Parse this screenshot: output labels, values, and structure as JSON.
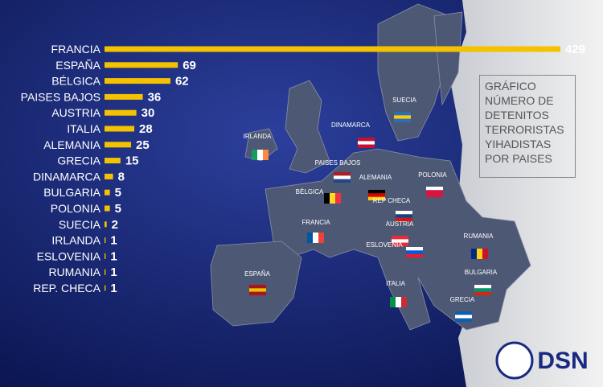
{
  "chart_data": {
    "type": "bar",
    "title": "GRÁFICO NÚMERO DE DETENITOS TERRORISTAS YIHADISTAS POR PAISES",
    "categories": [
      "FRANCIA",
      "ESPAÑA",
      "BÉLGICA",
      "PAISES BAJOS",
      "AUSTRIA",
      "ITALIA",
      "ALEMANIA",
      "GRECIA",
      "DINAMARCA",
      "BULGARIA",
      "POLONIA",
      "SUECIA",
      "IRLANDA",
      "ESLOVENIA",
      "RUMANIA",
      "REP. CHECA"
    ],
    "values": [
      429,
      69,
      62,
      36,
      30,
      28,
      25,
      15,
      8,
      5,
      5,
      2,
      1,
      1,
      1,
      1
    ],
    "color": "#f5c200",
    "map_labels": [
      "SUECIA",
      "DINAMARCA",
      "IRLANDA",
      "PAISES BAJOS",
      "ALEMANIA",
      "POLONIA",
      "BÉLGICA",
      "REP CHECA",
      "FRANCIA",
      "AUSTRIA",
      "ESLOVENIA",
      "RUMANIA",
      "ESPAÑA",
      "BULGARIA",
      "ITALIA",
      "GRECIA"
    ],
    "logo_text": "DSN"
  }
}
